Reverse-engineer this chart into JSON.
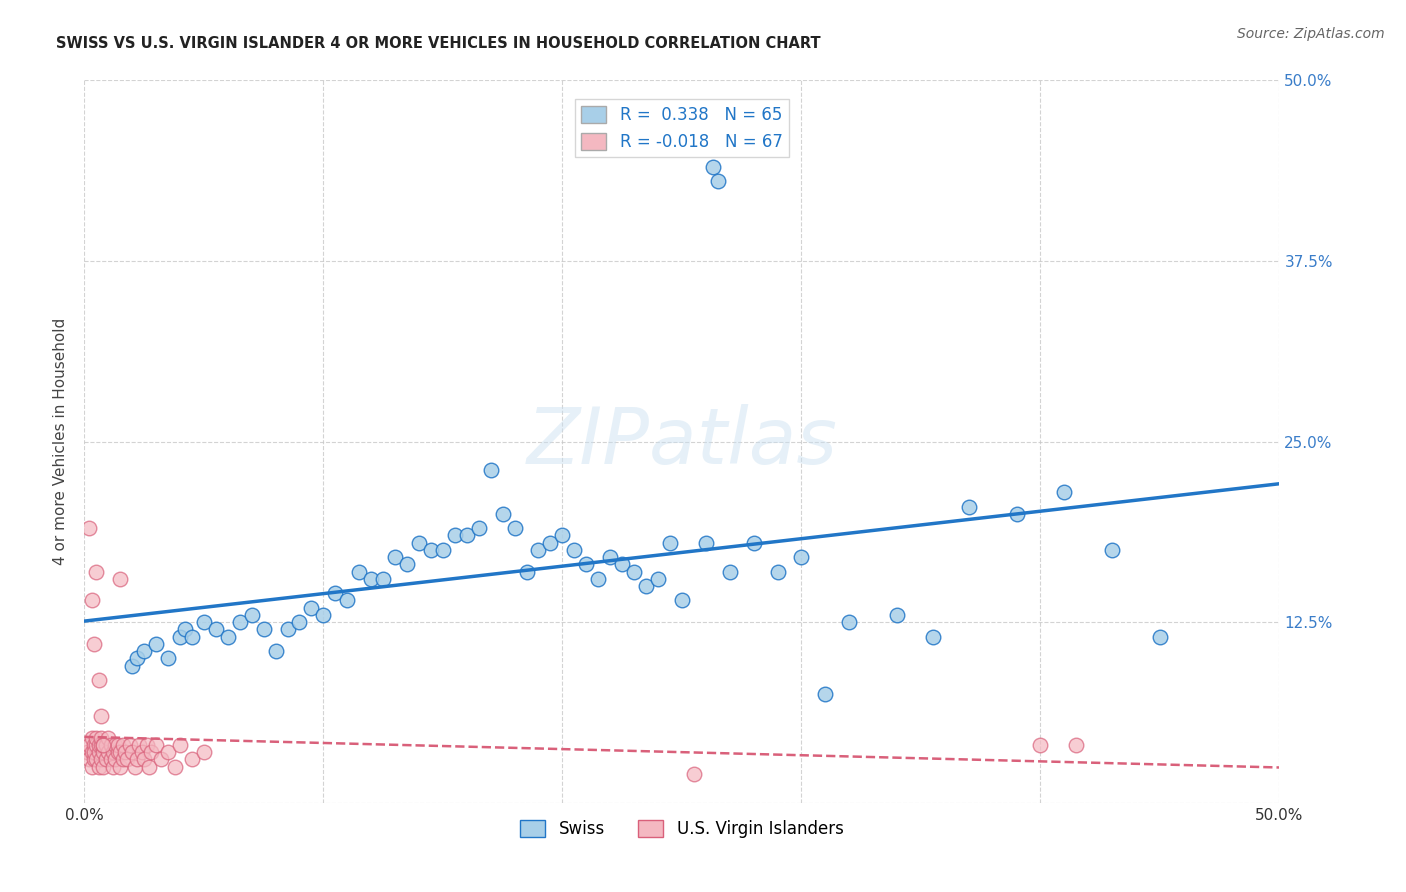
{
  "title": "SWISS VS U.S. VIRGIN ISLANDER 4 OR MORE VEHICLES IN HOUSEHOLD CORRELATION CHART",
  "source": "Source: ZipAtlas.com",
  "ylabel": "4 or more Vehicles in Household",
  "xlim": [
    0.0,
    0.5
  ],
  "ylim": [
    0.0,
    0.5
  ],
  "xtick_vals": [
    0.0,
    0.1,
    0.2,
    0.3,
    0.4,
    0.5
  ],
  "ytick_vals": [
    0.0,
    0.125,
    0.25,
    0.375,
    0.5
  ],
  "xticklabels": [
    "0.0%",
    "",
    "",
    "",
    "",
    "50.0%"
  ],
  "yticklabels_right": [
    "",
    "12.5%",
    "25.0%",
    "37.5%",
    "50.0%"
  ],
  "legend_swiss_label": "Swiss",
  "legend_vi_label": "U.S. Virgin Islanders",
  "swiss_R": "0.338",
  "swiss_N": "65",
  "vi_R": "-0.018",
  "vi_N": "67",
  "swiss_color": "#a8cfe8",
  "vi_color": "#f4b8c1",
  "swiss_line_color": "#2176c7",
  "vi_line_color": "#d9607a",
  "label_color": "#3a7dc9",
  "background_color": "#ffffff",
  "grid_color": "#c8c8c8",
  "watermark": "ZIPatlas",
  "swiss_x": [
    0.02,
    0.022,
    0.025,
    0.03,
    0.035,
    0.04,
    0.042,
    0.045,
    0.05,
    0.055,
    0.06,
    0.065,
    0.07,
    0.075,
    0.08,
    0.085,
    0.09,
    0.095,
    0.1,
    0.105,
    0.11,
    0.115,
    0.12,
    0.125,
    0.13,
    0.135,
    0.14,
    0.145,
    0.15,
    0.155,
    0.16,
    0.165,
    0.17,
    0.175,
    0.18,
    0.185,
    0.19,
    0.195,
    0.2,
    0.205,
    0.21,
    0.215,
    0.22,
    0.225,
    0.23,
    0.235,
    0.24,
    0.245,
    0.25,
    0.26,
    0.27,
    0.28,
    0.29,
    0.3,
    0.31,
    0.32,
    0.34,
    0.355,
    0.37,
    0.39,
    0.41,
    0.43,
    0.45,
    0.263,
    0.265
  ],
  "swiss_y": [
    0.095,
    0.1,
    0.105,
    0.11,
    0.1,
    0.115,
    0.12,
    0.115,
    0.125,
    0.12,
    0.115,
    0.125,
    0.13,
    0.12,
    0.105,
    0.12,
    0.125,
    0.135,
    0.13,
    0.145,
    0.14,
    0.16,
    0.155,
    0.155,
    0.17,
    0.165,
    0.18,
    0.175,
    0.175,
    0.185,
    0.185,
    0.19,
    0.23,
    0.2,
    0.19,
    0.16,
    0.175,
    0.18,
    0.185,
    0.175,
    0.165,
    0.155,
    0.17,
    0.165,
    0.16,
    0.15,
    0.155,
    0.18,
    0.14,
    0.18,
    0.16,
    0.18,
    0.16,
    0.17,
    0.075,
    0.125,
    0.13,
    0.115,
    0.205,
    0.2,
    0.215,
    0.175,
    0.115,
    0.44,
    0.43
  ],
  "vi_x": [
    0.001,
    0.002,
    0.002,
    0.003,
    0.003,
    0.003,
    0.004,
    0.004,
    0.004,
    0.005,
    0.005,
    0.005,
    0.006,
    0.006,
    0.006,
    0.007,
    0.007,
    0.007,
    0.008,
    0.008,
    0.008,
    0.009,
    0.009,
    0.01,
    0.01,
    0.011,
    0.011,
    0.012,
    0.012,
    0.013,
    0.013,
    0.014,
    0.014,
    0.015,
    0.015,
    0.016,
    0.016,
    0.017,
    0.018,
    0.019,
    0.02,
    0.021,
    0.022,
    0.023,
    0.024,
    0.025,
    0.026,
    0.027,
    0.028,
    0.03,
    0.032,
    0.035,
    0.038,
    0.04,
    0.045,
    0.05,
    0.002,
    0.003,
    0.004,
    0.005,
    0.006,
    0.007,
    0.008,
    0.255,
    0.4,
    0.415,
    0.015
  ],
  "vi_y": [
    0.035,
    0.04,
    0.03,
    0.035,
    0.025,
    0.045,
    0.03,
    0.04,
    0.035,
    0.03,
    0.04,
    0.045,
    0.025,
    0.035,
    0.04,
    0.03,
    0.04,
    0.045,
    0.025,
    0.035,
    0.04,
    0.03,
    0.04,
    0.035,
    0.045,
    0.03,
    0.04,
    0.025,
    0.035,
    0.04,
    0.03,
    0.035,
    0.04,
    0.025,
    0.035,
    0.03,
    0.04,
    0.035,
    0.03,
    0.04,
    0.035,
    0.025,
    0.03,
    0.04,
    0.035,
    0.03,
    0.04,
    0.025,
    0.035,
    0.04,
    0.03,
    0.035,
    0.025,
    0.04,
    0.03,
    0.035,
    0.19,
    0.14,
    0.11,
    0.16,
    0.085,
    0.06,
    0.04,
    0.02,
    0.04,
    0.04,
    0.155
  ]
}
